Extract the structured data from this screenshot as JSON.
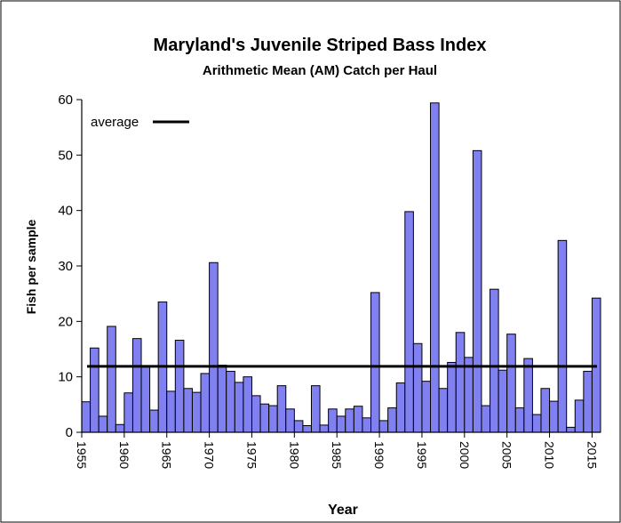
{
  "chart_data": {
    "type": "bar",
    "title": "Maryland's Juvenile Striped Bass Index",
    "subtitle": "Arithmetic Mean (AM) Catch per Haul",
    "xlabel": "Year",
    "ylabel": "Fish per sample",
    "ylim": [
      0,
      60
    ],
    "yticks": [
      0,
      10,
      20,
      30,
      40,
      50,
      60
    ],
    "xtick_labels": [
      "1955",
      "1960",
      "1965",
      "1970",
      "1975",
      "1980",
      "1985",
      "1990",
      "1995",
      "2000",
      "2005",
      "2010",
      "2015"
    ],
    "bar_color": "#8080f0",
    "legend": {
      "label": "average",
      "position": "top-left"
    },
    "average": 11.9,
    "grid": false,
    "categories": [
      1955,
      1956,
      1957,
      1958,
      1959,
      1960,
      1961,
      1962,
      1963,
      1964,
      1965,
      1966,
      1967,
      1968,
      1969,
      1970,
      1971,
      1972,
      1973,
      1974,
      1975,
      1976,
      1977,
      1978,
      1979,
      1980,
      1981,
      1982,
      1983,
      1984,
      1985,
      1986,
      1987,
      1988,
      1989,
      1990,
      1991,
      1992,
      1993,
      1994,
      1995,
      1996,
      1997,
      1998,
      1999,
      2000,
      2001,
      2002,
      2003,
      2004,
      2005,
      2006,
      2007,
      2008,
      2009,
      2010,
      2011,
      2012,
      2013,
      2014,
      2015
    ],
    "values": [
      5.5,
      15.2,
      2.9,
      19.1,
      1.4,
      7.1,
      16.9,
      12.0,
      4.0,
      23.5,
      7.4,
      16.6,
      7.9,
      7.2,
      10.6,
      30.6,
      12.1,
      11.0,
      9.0,
      10.0,
      6.6,
      5.1,
      4.8,
      8.4,
      4.2,
      2.1,
      1.2,
      8.4,
      1.3,
      4.2,
      2.9,
      4.2,
      4.7,
      2.6,
      25.2,
      2.1,
      4.4,
      8.9,
      39.8,
      16.0,
      9.2,
      59.4,
      7.9,
      12.6,
      18.0,
      13.5,
      50.8,
      4.8,
      25.8,
      11.2,
      17.7,
      4.4,
      13.3,
      3.2,
      7.9,
      5.6,
      34.6,
      0.9,
      5.8,
      11.0,
      24.2
    ]
  }
}
